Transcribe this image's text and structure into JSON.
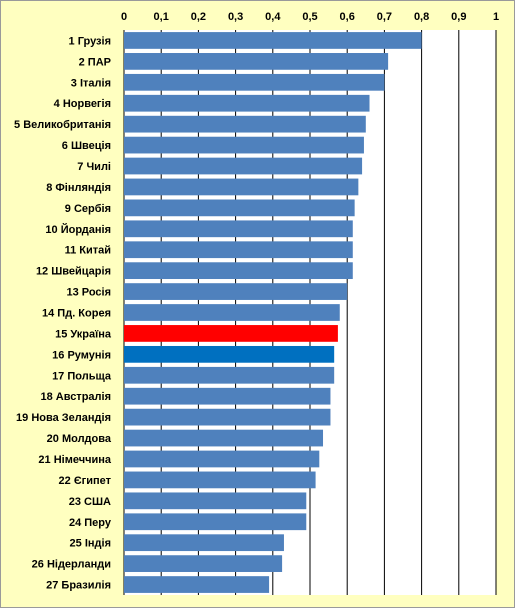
{
  "chart_data": {
    "type": "bar",
    "orientation": "horizontal",
    "title": "",
    "xlabel": "",
    "ylabel": "",
    "xlim": [
      0,
      1
    ],
    "x_ticks": [
      "0",
      "0,1",
      "0,2",
      "0,3",
      "0,4",
      "0,5",
      "0,6",
      "0,7",
      "0,8",
      "0,9",
      "1"
    ],
    "grid": true,
    "categories": [
      "1 Грузія",
      "2 ПАР",
      "3 Італія",
      "4 Норвегія",
      "5 Великобританія",
      "6 Швеція",
      "7 Чилі",
      "8 Фінляндія",
      "9 Сербія",
      "10 Йорданія",
      "11 Китай",
      "12 Швейцарія",
      "13 Росія",
      "14 Пд. Корея",
      "15 Україна",
      "16 Румунія",
      "17 Польща",
      "18 Австралія",
      "19 Нова Зеландія",
      "20 Молдова",
      "21 Німеччина",
      "22 Єгипет",
      "23 США",
      "24 Перу",
      "25 Індія",
      "26 Нідерланди",
      "27 Бразилія"
    ],
    "values": [
      0.8,
      0.71,
      0.7,
      0.66,
      0.65,
      0.645,
      0.64,
      0.63,
      0.62,
      0.615,
      0.615,
      0.615,
      0.6,
      0.58,
      0.575,
      0.565,
      0.565,
      0.555,
      0.555,
      0.535,
      0.525,
      0.515,
      0.49,
      0.49,
      0.43,
      0.425,
      0.39
    ],
    "bar_colors": {
      "default": "#4f81bd",
      "highlight_15": "#ff0000",
      "highlight_16": "#0070c0"
    }
  },
  "colors": {
    "background": "#ffffc0",
    "plot_area": "#ffffff",
    "gridline": "#000000"
  }
}
